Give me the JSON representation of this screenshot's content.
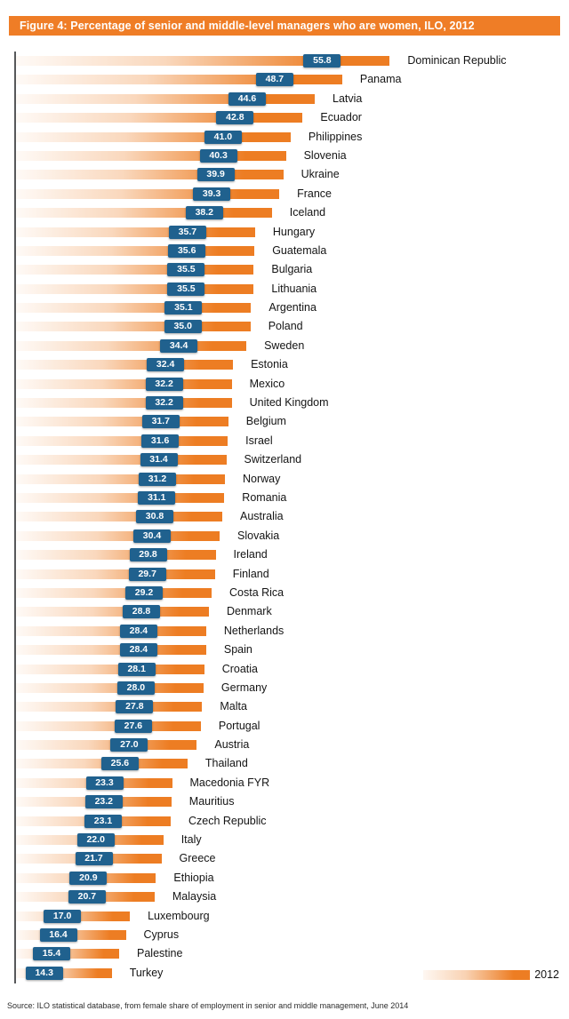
{
  "title": "Figure 4:  Percentage of senior and middle-level managers who are women, ILO, 2012",
  "source": "Source: ILO statistical database, from female share of employment in senior and middle management, June 2014",
  "legend": {
    "label": "2012"
  },
  "colors": {
    "header_orange": "#EF7D26",
    "bar_orange": "#ED7D23",
    "value_box_blue": "#20618E",
    "axis_gray": "#57585A"
  },
  "chart_data": {
    "type": "bar",
    "orientation": "horizontal",
    "title": "Figure 4: Percentage of senior and middle-level managers who are women, ILO, 2012",
    "xlabel": "",
    "ylabel": "",
    "xlim": [
      0,
      60
    ],
    "grid": false,
    "legend_position": "bottom-right",
    "series_name": "2012",
    "categories": [
      "Dominican Republic",
      "Panama",
      "Latvia",
      "Ecuador",
      "Philippines",
      "Slovenia",
      "Ukraine",
      "France",
      "Iceland",
      "Hungary",
      "Guatemala",
      "Bulgaria",
      "Lithuania",
      "Argentina",
      "Poland",
      "Sweden",
      "Estonia",
      "Mexico",
      "United Kingdom",
      "Belgium",
      "Israel",
      "Switzerland",
      "Norway",
      "Romania",
      "Australia",
      "Slovakia",
      "Ireland",
      "Finland",
      "Costa Rica",
      "Denmark",
      "Netherlands",
      "Spain",
      "Croatia",
      "Germany",
      "Malta",
      "Portugal",
      "Austria",
      "Thailand",
      "Macedonia FYR",
      "Mauritius",
      "Czech Republic",
      "Italy",
      "Greece",
      "Ethiopia",
      "Malaysia",
      "Luxembourg",
      "Cyprus",
      "Palestine",
      "Turkey"
    ],
    "values": [
      55.8,
      48.7,
      44.6,
      42.8,
      41.0,
      40.3,
      39.9,
      39.3,
      38.2,
      35.7,
      35.6,
      35.5,
      35.5,
      35.1,
      35.0,
      34.4,
      32.4,
      32.2,
      32.2,
      31.7,
      31.6,
      31.4,
      31.2,
      31.1,
      30.8,
      30.4,
      29.8,
      29.7,
      29.2,
      28.8,
      28.4,
      28.4,
      28.1,
      28.0,
      27.8,
      27.6,
      27.0,
      25.6,
      23.3,
      23.2,
      23.1,
      22.0,
      21.7,
      20.9,
      20.7,
      17.0,
      16.4,
      15.4,
      14.3
    ]
  }
}
